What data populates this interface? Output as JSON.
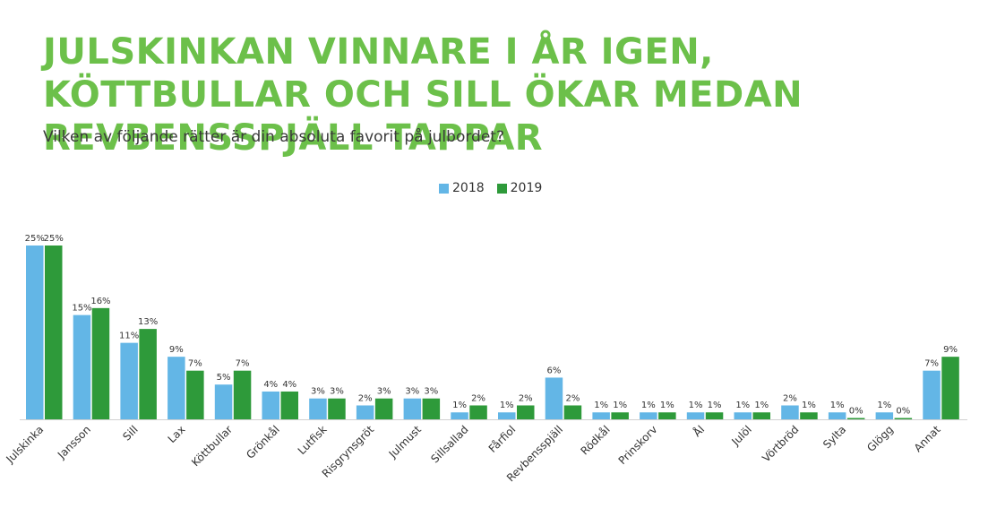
{
  "title": "JULSKINKAN VINNARE I ÅR IGEN, KÖTTBULLAR OCH SILL ÖKAR MEDAN REVBENSSPJÄLL TAPPAR",
  "subtitle": "Vilken av följande rätter är din absoluta favorit på julbordet?",
  "colors": {
    "title": "#6cc04a",
    "series_2018": "#63b6e6",
    "series_2019": "#2e9a3a"
  },
  "chart_data": {
    "type": "bar",
    "title": "JULSKINKAN VINNARE I ÅR IGEN, KÖTTBULLAR OCH SILL ÖKAR MEDAN REVBENSSPJÄLL TAPPAR",
    "subtitle": "Vilken av följande rätter är din absoluta favorit på julbordet?",
    "categories": [
      "Julskinka",
      "Jansson",
      "Sill",
      "Lax",
      "Köttbullar",
      "Grönkål",
      "Lutfisk",
      "Risgrynsgröt",
      "Julmust",
      "Sillsallad",
      "Fårfiol",
      "Revbensspjäll",
      "Rödkål",
      "Prinskorv",
      "Ål",
      "Julöl",
      "Vörtbröd",
      "Sylta",
      "Glögg",
      "Annat"
    ],
    "series": [
      {
        "name": "2018",
        "color": "#63b6e6",
        "values": [
          25,
          15,
          11,
          9,
          5,
          4,
          3,
          2,
          3,
          1,
          1,
          6,
          1,
          1,
          1,
          1,
          2,
          1,
          1,
          7
        ],
        "labels": [
          "25%",
          "15%",
          "11%",
          "9%",
          "5%",
          "4%",
          "3%",
          "2%",
          "3%",
          "1%",
          "1%",
          "6%",
          "1%",
          "1%",
          "1%",
          "1%",
          "2%",
          "1%",
          "1%",
          "7%"
        ]
      },
      {
        "name": "2019",
        "color": "#2e9a3a",
        "values": [
          25,
          16,
          13,
          7,
          7,
          4,
          3,
          3,
          3,
          2,
          2,
          2,
          1,
          1,
          1,
          1,
          1,
          0,
          0,
          9
        ],
        "labels": [
          "25%",
          "16%",
          "13%",
          "7%",
          "7%",
          "4%",
          "3%",
          "3%",
          "3%",
          "2%",
          "2%",
          "2%",
          "1%",
          "1%",
          "1%",
          "1%",
          "1%",
          "0%",
          "0%",
          "9%"
        ]
      }
    ],
    "ylim": [
      0,
      25
    ],
    "legend_position": "top-center",
    "grid": false
  }
}
